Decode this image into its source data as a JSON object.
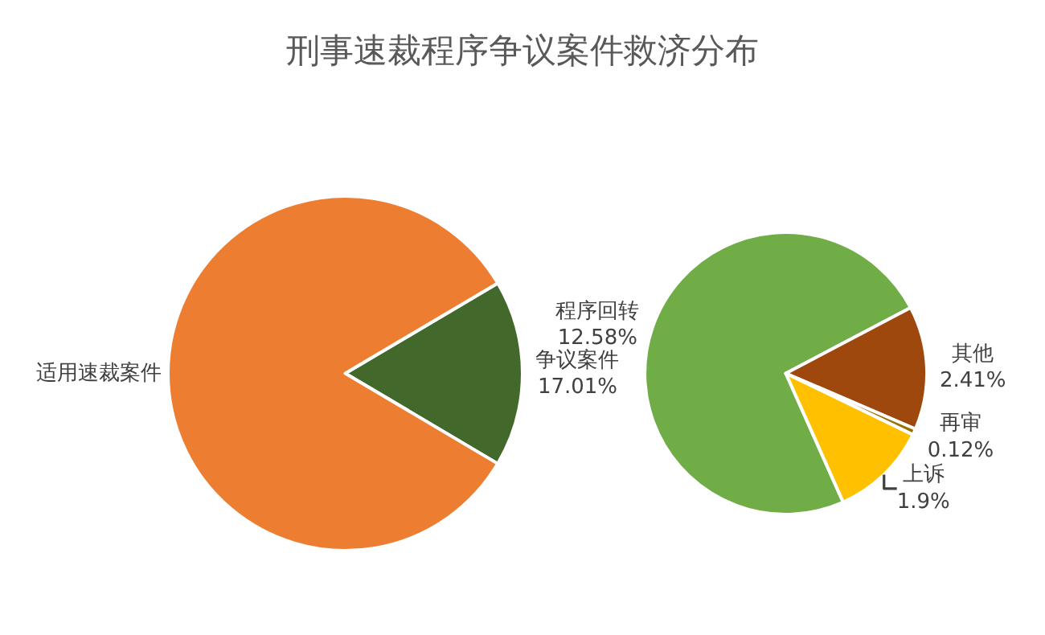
{
  "chart_data": [
    {
      "type": "pie",
      "title": "刑事速裁程序争议案件救济分布",
      "categories": [
        "争议案件",
        "适用速裁案件"
      ],
      "values": [
        17.01,
        82.99
      ],
      "colors": [
        "#43682b",
        "#ed7d31"
      ],
      "value_labels": [
        "17.01%",
        null
      ]
    },
    {
      "type": "pie",
      "categories": [
        "程序回转",
        "其他",
        "再审",
        "上诉"
      ],
      "values": [
        12.58,
        2.41,
        0.12,
        1.9
      ],
      "colors": [
        "#70ad47",
        "#9e480e",
        "#997300",
        "#ffc000"
      ],
      "value_labels": [
        "12.58%",
        "2.41%",
        "0.12%",
        "1.9%"
      ]
    }
  ]
}
